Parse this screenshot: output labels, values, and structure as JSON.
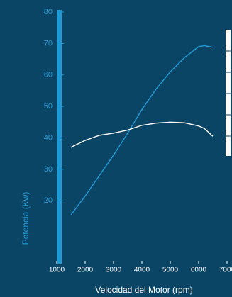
{
  "chart_data": {
    "type": "line",
    "x_label": "Velocidad del Motor (rpm)",
    "y_label": "Potencia (Kw)",
    "x": [
      1500,
      2000,
      2500,
      3000,
      3500,
      4000,
      4500,
      5000,
      5500,
      6000,
      6200,
      6500
    ],
    "series": [
      {
        "color": "#1e9bd7",
        "values": [
          15.5,
          21.5,
          28,
          34.5,
          41.5,
          49,
          55.5,
          61,
          65.5,
          69,
          69.3,
          68.8
        ]
      },
      {
        "color": "#ffffff",
        "values": [
          37,
          39.2,
          40.8,
          41.5,
          42.5,
          44,
          44.7,
          45,
          44.8,
          43.8,
          43,
          40.5
        ]
      }
    ],
    "xlim": [
      1000,
      7000
    ],
    "xticks": [
      1000,
      2000,
      3000,
      4000,
      5000,
      6000,
      7000
    ],
    "ylim": [
      0,
      80
    ],
    "yticks": [
      20,
      30,
      40,
      50,
      60,
      70,
      80
    ]
  }
}
